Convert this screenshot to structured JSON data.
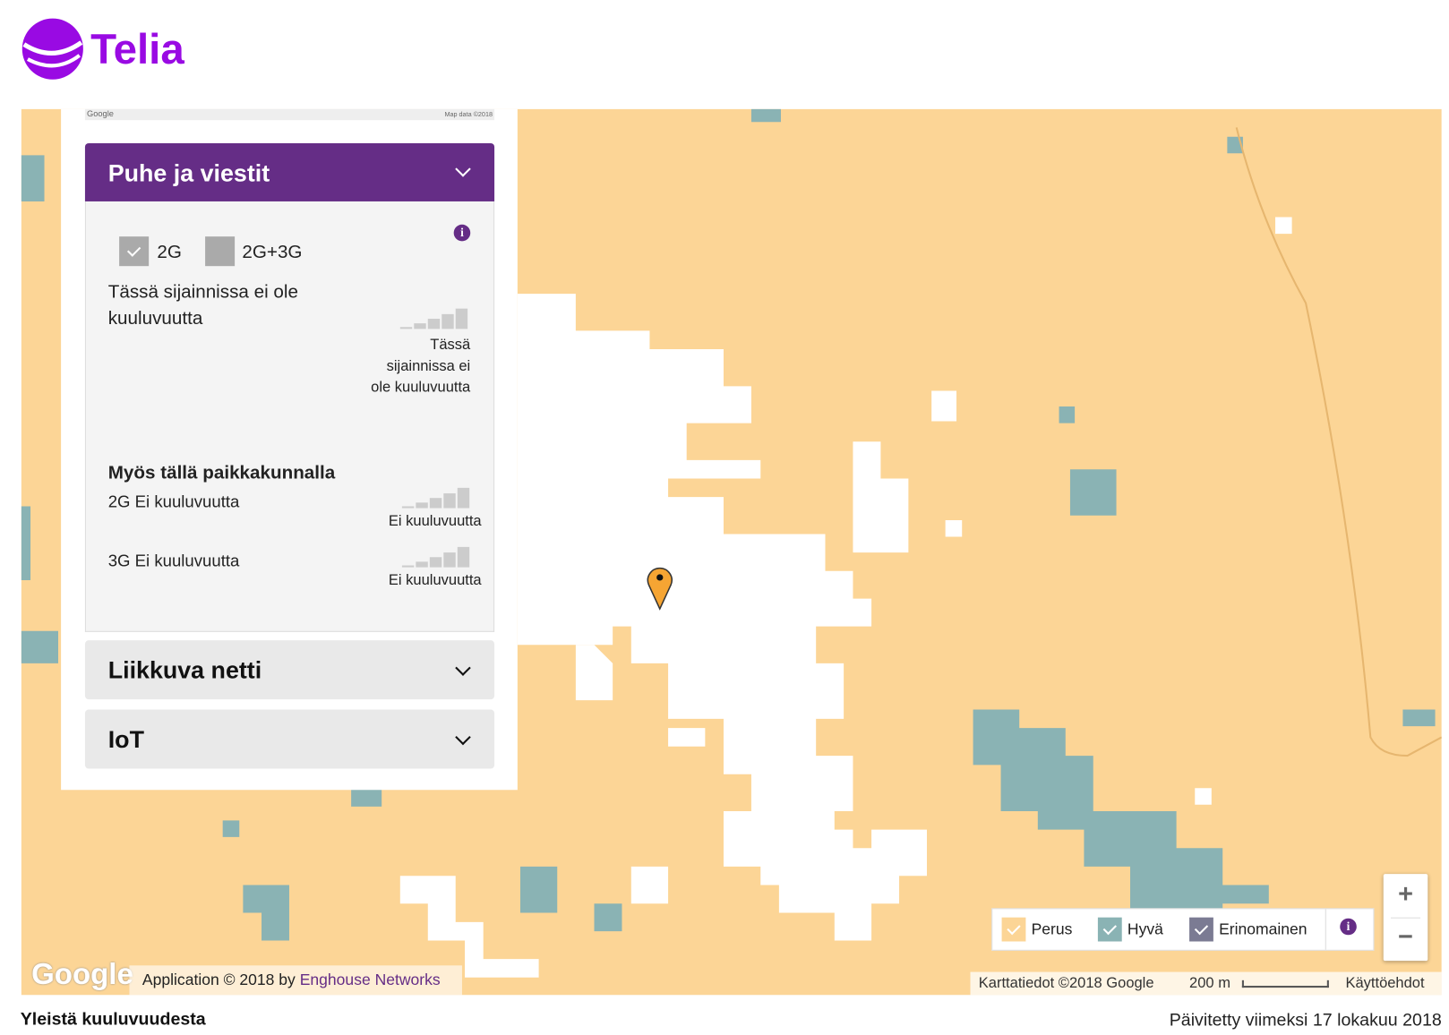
{
  "header": {
    "logo": "Telia"
  },
  "panel": {
    "map_strip": {
      "logo": "Google",
      "data": "Map data ©2018"
    },
    "voice": {
      "title": "Puhe ja viestit",
      "options": [
        "2G",
        "2G+3G"
      ],
      "status": "Tässä sijainnissa ei ole kuuluvuutta",
      "signal_label": "Tässä sijainnissa ei ole kuuluvuutta",
      "also_title": "Myös tällä paikkakunnalla",
      "also": [
        {
          "label": "2G Ei kuuluvuutta",
          "signal": "Ei kuuluvuutta"
        },
        {
          "label": "3G Ei kuuluvuutta",
          "signal": "Ei kuuluvuutta"
        }
      ]
    },
    "sections": [
      "Liikkuva netti",
      "IoT"
    ]
  },
  "legend": [
    "Perus",
    "Hyvä",
    "Erinomainen"
  ],
  "zoom": {
    "in": "+",
    "out": "−"
  },
  "map": {
    "google": "Google",
    "application": "Application © 2018 by ",
    "application_link": "Enghouse Networks",
    "map_data": "Karttatiedot ©2018 Google",
    "scale": "200 m",
    "terms": "Käyttöehdot"
  },
  "footer": {
    "left": "Yleistä kuuluvuudesta",
    "right": "Päivitetty viimeksi 17 lokakuu 2018"
  }
}
